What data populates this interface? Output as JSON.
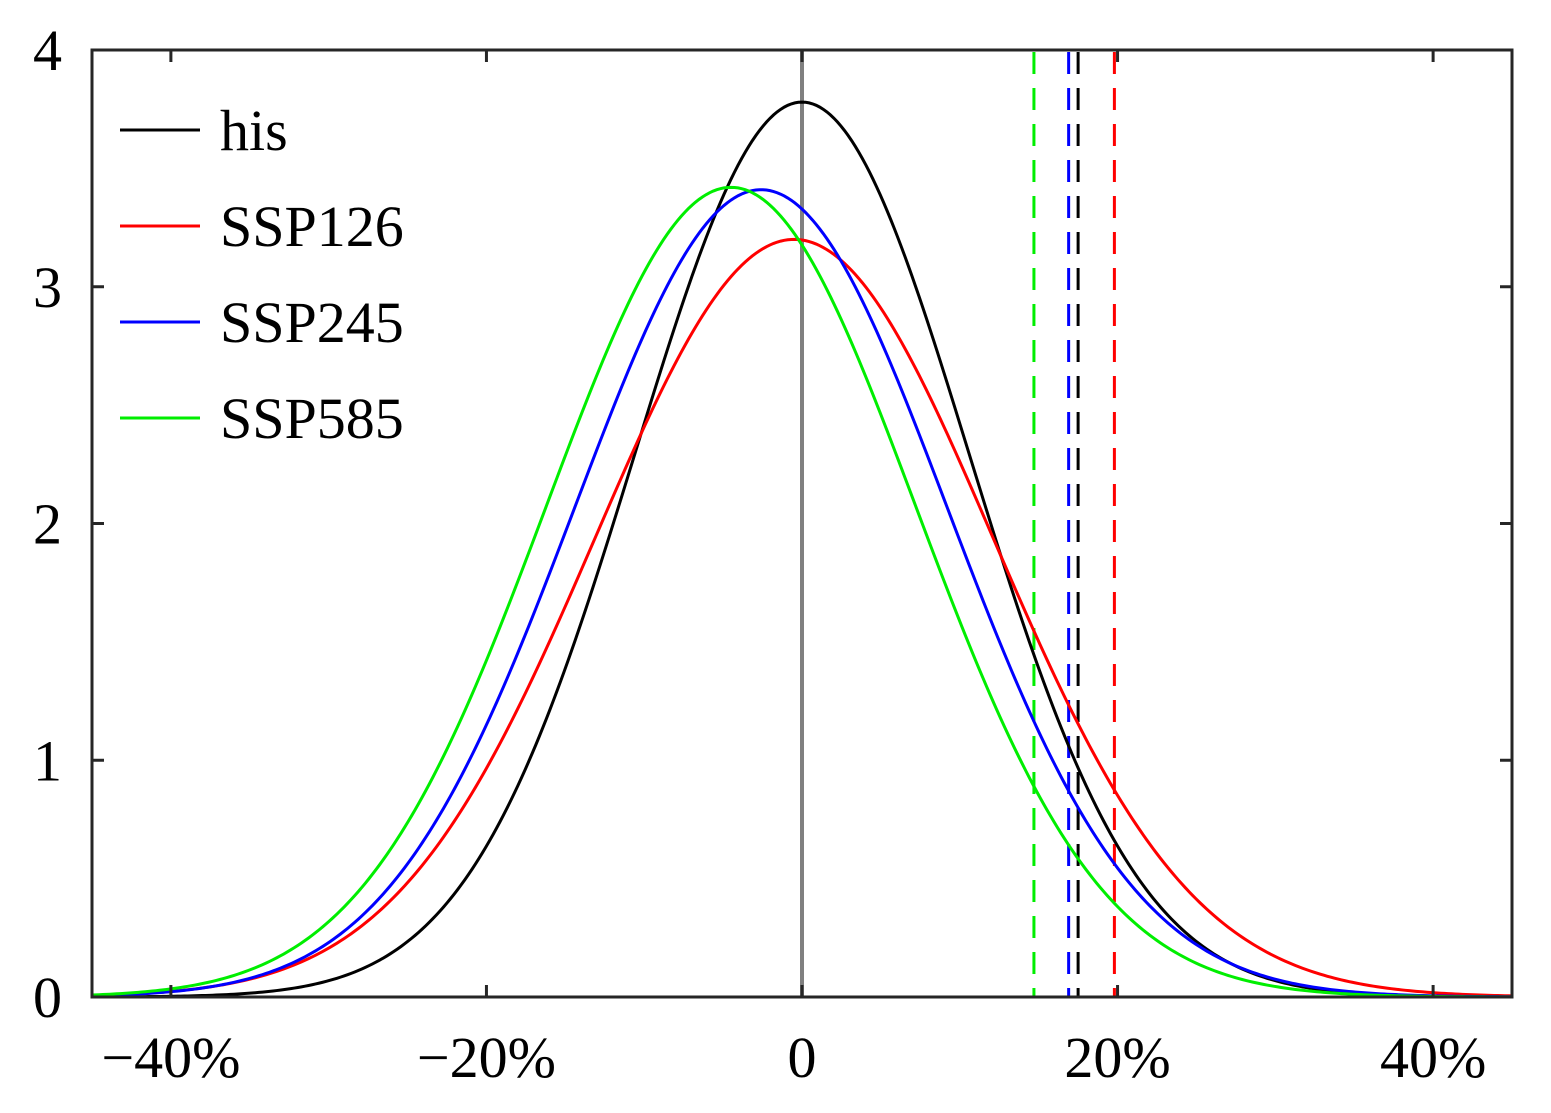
{
  "chart_data": {
    "type": "line",
    "title": "",
    "xlabel": "",
    "ylabel": "",
    "xlim": [
      -0.45,
      0.45
    ],
    "ylim": [
      0,
      4
    ],
    "x_ticks": [
      {
        "value": -0.4,
        "label": "−40%"
      },
      {
        "value": -0.2,
        "label": "−20%"
      },
      {
        "value": 0,
        "label": "0"
      },
      {
        "value": 0.2,
        "label": "20%"
      },
      {
        "value": 0.4,
        "label": "40%"
      }
    ],
    "y_ticks": [
      {
        "value": 0,
        "label": "0"
      },
      {
        "value": 1,
        "label": "1"
      },
      {
        "value": 2,
        "label": "2"
      },
      {
        "value": 3,
        "label": "3"
      },
      {
        "value": 4,
        "label": "4"
      }
    ],
    "grid": false,
    "legend_position": "top-left",
    "series": [
      {
        "name": "his",
        "color": "#000000",
        "curve": {
          "mean": 0.0,
          "sd": 0.106,
          "peak": 3.78
        },
        "threshold_x": 0.175
      },
      {
        "name": "SSP126",
        "color": "#ff0000",
        "curve": {
          "mean": -0.005,
          "sd": 0.126,
          "peak": 3.2
        },
        "threshold_x": 0.198
      },
      {
        "name": "SSP245",
        "color": "#0000ff",
        "curve": {
          "mean": -0.026,
          "sd": 0.118,
          "peak": 3.41
        },
        "threshold_x": 0.169
      },
      {
        "name": "SSP585",
        "color": "#00ee00",
        "curve": {
          "mean": -0.045,
          "sd": 0.117,
          "peak": 3.42
        },
        "threshold_x": 0.147
      }
    ],
    "reference_line": {
      "x": 0,
      "color": "#808080"
    },
    "frame_color": "#262626"
  }
}
